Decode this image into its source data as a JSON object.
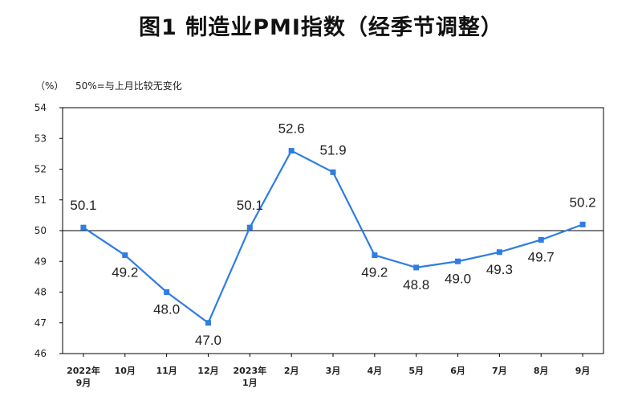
{
  "chart_data": {
    "type": "line",
    "title": "图1  制造业PMI指数（经季节调整）",
    "ylabel": "（%）",
    "annotation": "50%=与上月比较无变化",
    "categories": [
      [
        "2022年",
        "9月"
      ],
      [
        "10月"
      ],
      [
        "11月"
      ],
      [
        "12月"
      ],
      [
        "2023年",
        "1月"
      ],
      [
        "2月"
      ],
      [
        "3月"
      ],
      [
        "4月"
      ],
      [
        "5月"
      ],
      [
        "6月"
      ],
      [
        "7月"
      ],
      [
        "8月"
      ],
      [
        "9月"
      ]
    ],
    "series": [
      {
        "name": "制造业PMI",
        "values": [
          50.1,
          49.2,
          48.0,
          47.0,
          50.1,
          52.6,
          51.9,
          49.2,
          48.8,
          49.0,
          49.3,
          49.7,
          50.2
        ]
      }
    ],
    "data_labels": [
      "50.1",
      "49.2",
      "48.0",
      "47.0",
      "50.1",
      "52.6",
      "51.9",
      "49.2",
      "48.8",
      "49.0",
      "49.3",
      "49.7",
      "50.2"
    ],
    "ylim": [
      46,
      54
    ],
    "yticks": [
      "46",
      "47",
      "48",
      "49",
      "50",
      "51",
      "52",
      "53",
      "54"
    ],
    "reference_line": 50,
    "line_color": "#2f7de1",
    "grid": false
  }
}
